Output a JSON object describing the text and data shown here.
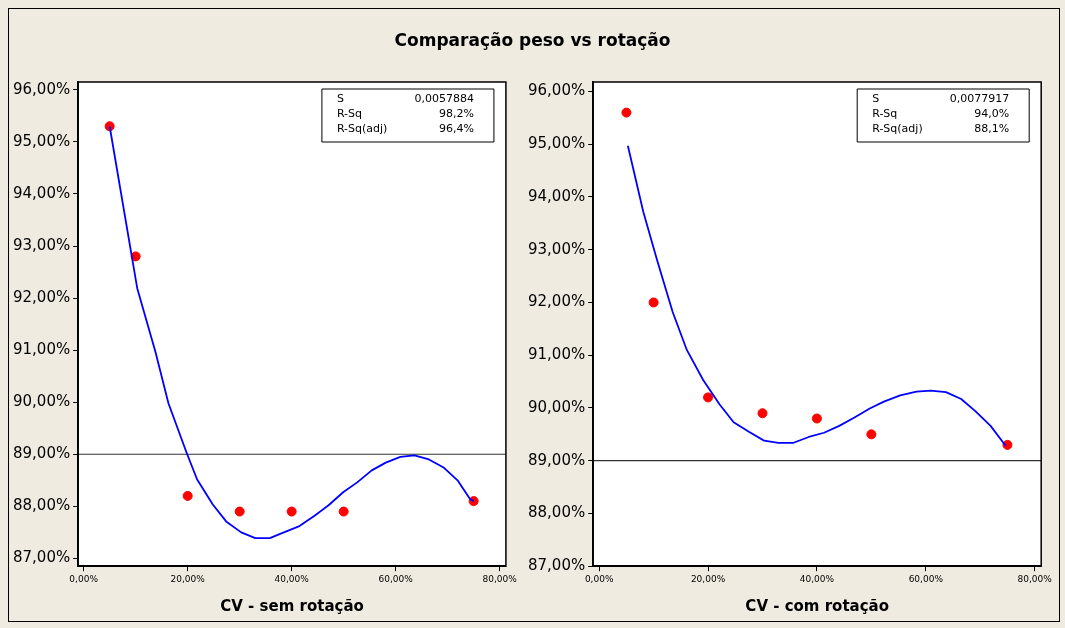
{
  "chart_data": [
    {
      "type": "scatter",
      "title": "Comparação peso vs  rotação",
      "xlabel": "CV - sem rotação",
      "annotations": [
        "S",
        "0,0057884",
        "R-Sq",
        "98,2%",
        "R-Sq(adj)",
        "96,4%"
      ],
      "xlim": [
        -1.05,
        81.2
      ],
      "xticks": [
        {
          "value": 0,
          "label": "0,00%"
        },
        {
          "value": 20,
          "label": "20,00%"
        },
        {
          "value": 40,
          "label": "40,00%"
        },
        {
          "value": 60,
          "label": "60,00%"
        },
        {
          "value": 80,
          "label": "80,00%"
        }
      ],
      "ylim": [
        86.85,
        96.15
      ],
      "yticks": [
        {
          "value": 87,
          "label": "87,00%"
        },
        {
          "value": 88,
          "label": "88,00%"
        },
        {
          "value": 89,
          "label": "89,00%"
        },
        {
          "value": 90,
          "label": "90,00%"
        },
        {
          "value": 91,
          "label": "91,00%"
        },
        {
          "value": 92,
          "label": "92,00%"
        },
        {
          "value": 93,
          "label": "93,00%"
        },
        {
          "value": 94,
          "label": "94,00%"
        },
        {
          "value": 95,
          "label": "95,00%"
        },
        {
          "value": 96,
          "label": "96,00%"
        }
      ],
      "grid": false,
      "legend": false,
      "ref_lines": [
        {
          "axis": "y",
          "value": 89,
          "color": "#333333"
        }
      ],
      "series": [
        {
          "type": "line",
          "color": "#0000ff",
          "marker": "none",
          "x": [
            5,
            10.3,
            13.8,
            16.3,
            19.8,
            21.8,
            24.8,
            27.4,
            30.3,
            33,
            35.8,
            38.5,
            41.5,
            44.4,
            47.1,
            49.9,
            52.6,
            55.4,
            58.1,
            60.9,
            63.6,
            66.4,
            69.3,
            71.9,
            74.3,
            75
          ],
          "values": [
            95.3,
            92.19,
            90.97,
            89.98,
            89.03,
            88.52,
            88.04,
            87.71,
            87.5,
            87.39,
            87.39,
            87.5,
            87.62,
            87.82,
            88.02,
            88.27,
            88.46,
            88.69,
            88.84,
            88.95,
            88.98,
            88.9,
            88.74,
            88.5,
            88.14,
            88.1
          ]
        },
        {
          "color": "#ff0000",
          "marker": "circle",
          "x": [
            5,
            10,
            20,
            30,
            40,
            50,
            75
          ],
          "values": [
            95.3,
            92.8,
            88.2,
            87.9,
            87.9,
            87.9,
            88.1
          ]
        }
      ]
    },
    {
      "type": "scatter",
      "xlabel": "CV - com rotação",
      "annotations": [
        "S",
        "0,0077917",
        "R-Sq",
        "94,0%",
        "R-Sq(adj)",
        "88,1%"
      ],
      "xlim": [
        -1.1,
        81.2
      ],
      "xticks": [
        {
          "value": 0,
          "label": "0,00%"
        },
        {
          "value": 20,
          "label": "20,00%"
        },
        {
          "value": 40,
          "label": "40,00%"
        },
        {
          "value": 60,
          "label": "60,00%"
        },
        {
          "value": 80,
          "label": "80,00%"
        }
      ],
      "ylim": [
        87,
        96.18
      ],
      "yticks": [
        {
          "value": 87,
          "label": "87,00%"
        },
        {
          "value": 88,
          "label": "88,00%"
        },
        {
          "value": 89,
          "label": "89,00%"
        },
        {
          "value": 90,
          "label": "90,00%"
        },
        {
          "value": 91,
          "label": "91,00%"
        },
        {
          "value": 92,
          "label": "92,00%"
        },
        {
          "value": 93,
          "label": "93,00%"
        },
        {
          "value": 94,
          "label": "94,00%"
        },
        {
          "value": 95,
          "label": "95,00%"
        },
        {
          "value": 96,
          "label": "96,00%"
        }
      ],
      "grid": false,
      "legend": false,
      "ref_lines": [
        {
          "axis": "y",
          "value": 89,
          "color": "#333333"
        }
      ],
      "series": [
        {
          "type": "line",
          "color": "#0000ff",
          "marker": "none",
          "x": [
            5.27,
            8.1,
            10.7,
            13.5,
            16.1,
            19.1,
            22.1,
            24.7,
            27.5,
            30.3,
            32.9,
            35.7,
            38.5,
            41.3,
            44.1,
            46.9,
            49.7,
            52.3,
            55.3,
            58.3,
            60.9,
            63.7,
            66.5,
            69.1,
            71.9,
            74.7
          ],
          "values": [
            94.97,
            93.72,
            92.78,
            91.82,
            91.1,
            90.53,
            90.07,
            89.73,
            89.55,
            89.38,
            89.34,
            89.34,
            89.45,
            89.53,
            89.66,
            89.82,
            89.99,
            90.12,
            90.24,
            90.31,
            90.33,
            90.3,
            90.17,
            89.94,
            89.66,
            89.28
          ]
        },
        {
          "color": "#ff0000",
          "marker": "circle",
          "x": [
            5,
            10,
            20,
            30,
            40,
            50,
            75
          ],
          "values": [
            95.6,
            92.0,
            90.2,
            89.9,
            89.8,
            89.5,
            89.3
          ]
        }
      ]
    }
  ]
}
